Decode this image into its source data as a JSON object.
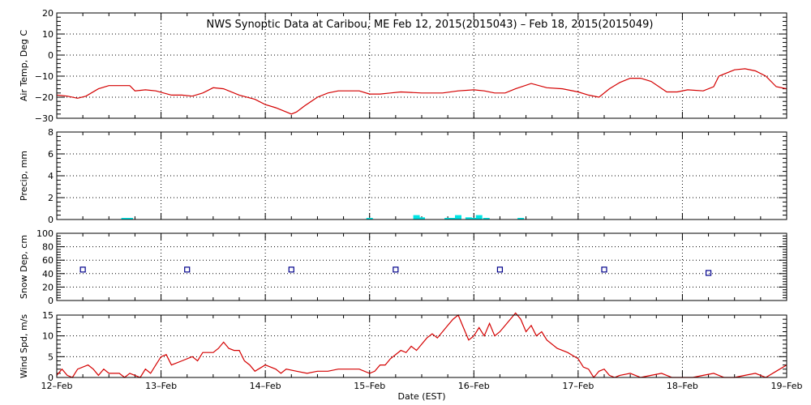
{
  "chart_data": {
    "type": "line",
    "title": "NWS Synoptic Data at Caribou, ME   Feb 12, 2015(2015043) – Feb 18, 2015(2015049)",
    "xlabel": "Date (EST)",
    "x_ticks": [
      "12–Feb",
      "13–Feb",
      "14–Feb",
      "15–Feb",
      "16–Feb",
      "17–Feb",
      "18–Feb",
      "19–Feb"
    ],
    "x_range_days": [
      0,
      7
    ],
    "grid": true,
    "panels": [
      {
        "name": "air-temp",
        "ylabel": "Air Temp, Deg C",
        "ylim": [
          -30,
          20
        ],
        "yticks": [
          "20",
          "10",
          "0",
          "−10",
          "−20",
          "−30"
        ],
        "ytick_values": [
          20,
          10,
          0,
          -10,
          -20,
          -30
        ],
        "type": "line",
        "color": "#d40000",
        "series": [
          {
            "values": [
              [
                0,
                -19
              ],
              [
                0.1,
                -19.5
              ],
              [
                0.2,
                -20.5
              ],
              [
                0.28,
                -19.5
              ],
              [
                0.4,
                -16
              ],
              [
                0.5,
                -14.5
              ],
              [
                0.7,
                -14.5
              ],
              [
                0.75,
                -17
              ],
              [
                0.85,
                -16.5
              ],
              [
                0.95,
                -17
              ],
              [
                1.1,
                -19
              ],
              [
                1.2,
                -19
              ],
              [
                1.3,
                -19.5
              ],
              [
                1.4,
                -18
              ],
              [
                1.5,
                -15.5
              ],
              [
                1.6,
                -16
              ],
              [
                1.75,
                -19
              ],
              [
                1.9,
                -21
              ],
              [
                2.0,
                -23.5
              ],
              [
                2.1,
                -25
              ],
              [
                2.2,
                -27
              ],
              [
                2.25,
                -28
              ],
              [
                2.3,
                -27
              ],
              [
                2.38,
                -24
              ],
              [
                2.5,
                -20
              ],
              [
                2.6,
                -18
              ],
              [
                2.7,
                -17
              ],
              [
                2.9,
                -17
              ],
              [
                3.0,
                -18.5
              ],
              [
                3.1,
                -18.5
              ],
              [
                3.2,
                -18
              ],
              [
                3.3,
                -17.5
              ],
              [
                3.5,
                -18
              ],
              [
                3.7,
                -18
              ],
              [
                3.85,
                -17
              ],
              [
                4.0,
                -16.5
              ],
              [
                4.1,
                -17
              ],
              [
                4.2,
                -18
              ],
              [
                4.3,
                -18
              ],
              [
                4.4,
                -16
              ],
              [
                4.55,
                -13.5
              ],
              [
                4.7,
                -15.5
              ],
              [
                4.85,
                -16
              ],
              [
                5.0,
                -17.5
              ],
              [
                5.1,
                -19
              ],
              [
                5.2,
                -20
              ],
              [
                5.3,
                -16
              ],
              [
                5.4,
                -13
              ],
              [
                5.5,
                -11
              ],
              [
                5.6,
                -11
              ],
              [
                5.7,
                -12.5
              ],
              [
                5.85,
                -17.5
              ],
              [
                5.95,
                -17.5
              ],
              [
                6.05,
                -16.5
              ],
              [
                6.2,
                -17
              ],
              [
                6.3,
                -15
              ],
              [
                6.35,
                -10
              ],
              [
                6.5,
                -7
              ],
              [
                6.6,
                -6.5
              ],
              [
                6.7,
                -7.5
              ],
              [
                6.8,
                -10
              ],
              [
                6.9,
                -15
              ],
              [
                7.0,
                -16
              ]
            ]
          }
        ]
      },
      {
        "name": "precip",
        "ylabel": "Precip, mm",
        "ylim": [
          0,
          8
        ],
        "yticks": [
          "8",
          "6",
          "4",
          "2",
          "0"
        ],
        "ytick_values": [
          8,
          6,
          4,
          2,
          0
        ],
        "type": "bar",
        "color": "#00e5e5",
        "series": [
          {
            "values": [
              [
                0.65,
                0.1
              ],
              [
                0.7,
                0.1
              ],
              [
                3.0,
                0.1
              ],
              [
                4.0,
                0.1
              ],
              [
                4.45,
                0.1
              ],
              [
                3.45,
                0.4
              ],
              [
                3.5,
                0.2
              ],
              [
                3.75,
                0.1
              ],
              [
                3.8,
                0.1
              ],
              [
                3.85,
                0.4
              ],
              [
                3.95,
                0.2
              ],
              [
                4.05,
                0.4
              ],
              [
                4.12,
                0.1
              ]
            ]
          }
        ]
      },
      {
        "name": "snow-depth",
        "ylabel": "Snow Dep, cm",
        "ylim": [
          0,
          100
        ],
        "yticks": [
          "100",
          "80",
          "60",
          "40",
          "20",
          "0"
        ],
        "ytick_values": [
          100,
          80,
          60,
          40,
          20,
          0
        ],
        "type": "scatter",
        "color": "#00008b",
        "series": [
          {
            "values": [
              [
                0.25,
                46
              ],
              [
                1.25,
                46
              ],
              [
                2.25,
                46
              ],
              [
                3.25,
                46
              ],
              [
                4.25,
                46
              ],
              [
                5.25,
                46
              ],
              [
                6.25,
                41
              ]
            ]
          }
        ]
      },
      {
        "name": "wind-speed",
        "ylabel": "Wind Spd, m/s",
        "ylim": [
          0,
          15
        ],
        "yticks": [
          "15",
          "10",
          "5",
          "0"
        ],
        "ytick_values": [
          15,
          10,
          5,
          0
        ],
        "type": "line",
        "color": "#d40000",
        "series": [
          {
            "values": [
              [
                0,
                0.5
              ],
              [
                0.05,
                2
              ],
              [
                0.1,
                0.5
              ],
              [
                0.15,
                0
              ],
              [
                0.2,
                2
              ],
              [
                0.3,
                3
              ],
              [
                0.35,
                2
              ],
              [
                0.4,
                0.5
              ],
              [
                0.45,
                2
              ],
              [
                0.5,
                1
              ],
              [
                0.6,
                1
              ],
              [
                0.65,
                0
              ],
              [
                0.7,
                1
              ],
              [
                0.8,
                0
              ],
              [
                0.85,
                2
              ],
              [
                0.9,
                1
              ],
              [
                0.95,
                3
              ],
              [
                1.0,
                5
              ],
              [
                1.05,
                5.5
              ],
              [
                1.1,
                3
              ],
              [
                1.2,
                4
              ],
              [
                1.3,
                5
              ],
              [
                1.35,
                4
              ],
              [
                1.4,
                6
              ],
              [
                1.5,
                6
              ],
              [
                1.55,
                7
              ],
              [
                1.6,
                8.5
              ],
              [
                1.65,
                7
              ],
              [
                1.7,
                6.5
              ],
              [
                1.75,
                6.5
              ],
              [
                1.8,
                4
              ],
              [
                1.85,
                3
              ],
              [
                1.9,
                1.5
              ],
              [
                2.0,
                3
              ],
              [
                2.1,
                2
              ],
              [
                2.15,
                1
              ],
              [
                2.2,
                2
              ],
              [
                2.3,
                1.5
              ],
              [
                2.4,
                1
              ],
              [
                2.5,
                1.5
              ],
              [
                2.6,
                1.5
              ],
              [
                2.7,
                2
              ],
              [
                2.8,
                2
              ],
              [
                2.9,
                2
              ],
              [
                3.0,
                1
              ],
              [
                3.05,
                1.5
              ],
              [
                3.1,
                3
              ],
              [
                3.15,
                3
              ],
              [
                3.2,
                4.5
              ],
              [
                3.3,
                6.5
              ],
              [
                3.35,
                6
              ],
              [
                3.4,
                7.5
              ],
              [
                3.45,
                6.5
              ],
              [
                3.5,
                8
              ],
              [
                3.55,
                9.5
              ],
              [
                3.6,
                10.5
              ],
              [
                3.65,
                9.5
              ],
              [
                3.7,
                11
              ],
              [
                3.75,
                12.5
              ],
              [
                3.8,
                14
              ],
              [
                3.85,
                15
              ],
              [
                3.9,
                12
              ],
              [
                3.95,
                9
              ],
              [
                4.0,
                10
              ],
              [
                4.05,
                12
              ],
              [
                4.1,
                10
              ],
              [
                4.15,
                13
              ],
              [
                4.2,
                10
              ],
              [
                4.25,
                11
              ],
              [
                4.3,
                12.5
              ],
              [
                4.35,
                14
              ],
              [
                4.4,
                15.5
              ],
              [
                4.45,
                14
              ],
              [
                4.5,
                11
              ],
              [
                4.55,
                12.5
              ],
              [
                4.6,
                10
              ],
              [
                4.65,
                11
              ],
              [
                4.7,
                9
              ],
              [
                4.8,
                7
              ],
              [
                4.9,
                6
              ],
              [
                5.0,
                4.5
              ],
              [
                5.05,
                2.5
              ],
              [
                5.1,
                2
              ],
              [
                5.15,
                0
              ],
              [
                5.2,
                1.5
              ],
              [
                5.25,
                2
              ],
              [
                5.3,
                0.5
              ],
              [
                5.35,
                0
              ],
              [
                5.4,
                0.5
              ],
              [
                5.5,
                1
              ],
              [
                5.6,
                0
              ],
              [
                5.7,
                0.5
              ],
              [
                5.8,
                1
              ],
              [
                5.9,
                0
              ],
              [
                6.0,
                0
              ],
              [
                6.1,
                0
              ],
              [
                6.2,
                0.5
              ],
              [
                6.3,
                1
              ],
              [
                6.4,
                0
              ],
              [
                6.5,
                0
              ],
              [
                6.6,
                0.5
              ],
              [
                6.7,
                1
              ],
              [
                6.8,
                0
              ],
              [
                6.9,
                1.5
              ],
              [
                7.0,
                3
              ]
            ]
          }
        ]
      }
    ]
  }
}
